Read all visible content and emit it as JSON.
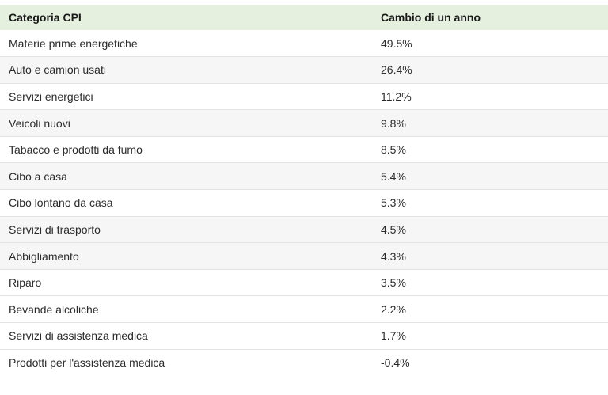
{
  "table": {
    "headers": [
      "Categoria CPI",
      "Cambio di un anno"
    ],
    "rows": [
      [
        "Materie prime energetiche",
        "49.5%"
      ],
      [
        "Auto e camion usati",
        "26.4%"
      ],
      [
        "Servizi energetici",
        "11.2%"
      ],
      [
        "Veicoli nuovi",
        "9.8%"
      ],
      [
        "Tabacco e prodotti da fumo",
        "8.5%"
      ],
      [
        "Cibo a casa",
        "5.4%"
      ],
      [
        "Cibo lontano da casa",
        "5.3%"
      ],
      [
        "Servizi di trasporto",
        "4.5%"
      ],
      [
        "Abbigliamento",
        "4.3%"
      ],
      [
        "Riparo",
        "3.5%"
      ],
      [
        "Bevande alcoliche",
        "2.2%"
      ],
      [
        "Servizi di assistenza medica",
        "1.7%"
      ],
      [
        "Prodotti per l'assistenza medica",
        "-0.4%"
      ]
    ]
  },
  "colors": {
    "header_bg": "#e5f0df",
    "shaded_row_bg": "#f6f6f6",
    "row_divider": "#e3e3e3"
  }
}
